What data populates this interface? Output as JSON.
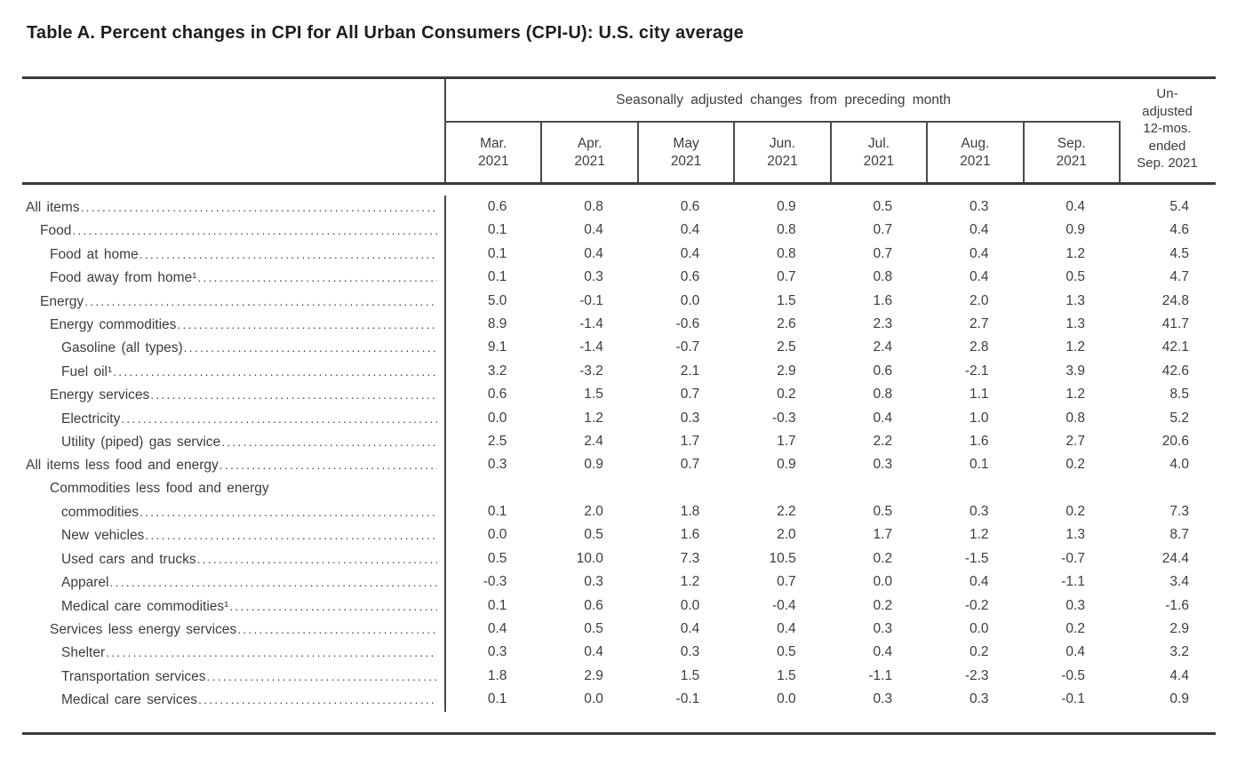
{
  "title": "Table A. Percent changes in CPI for All Urban Consumers (CPI-U): U.S. city average",
  "table": {
    "group_header": "Seasonally adjusted changes from preceding month",
    "month_columns": [
      {
        "line1": "Mar.",
        "line2": "2021"
      },
      {
        "line1": "Apr.",
        "line2": "2021"
      },
      {
        "line1": "May",
        "line2": "2021"
      },
      {
        "line1": "Jun.",
        "line2": "2021"
      },
      {
        "line1": "Jul.",
        "line2": "2021"
      },
      {
        "line1": "Aug.",
        "line2": "2021"
      },
      {
        "line1": "Sep.",
        "line2": "2021"
      }
    ],
    "unadjusted_header_lines": [
      "Un-",
      "adjusted",
      "12-mos.",
      "ended",
      "Sep. 2021"
    ],
    "rows": [
      {
        "label": "All items",
        "indent": 0,
        "values": [
          "0.6",
          "0.8",
          "0.6",
          "0.9",
          "0.5",
          "0.3",
          "0.4"
        ],
        "unadjusted_12mo": "5.4"
      },
      {
        "label": "Food",
        "indent": 1,
        "values": [
          "0.1",
          "0.4",
          "0.4",
          "0.8",
          "0.7",
          "0.4",
          "0.9"
        ],
        "unadjusted_12mo": "4.6"
      },
      {
        "label": "Food at home",
        "indent": 2,
        "values": [
          "0.1",
          "0.4",
          "0.4",
          "0.8",
          "0.7",
          "0.4",
          "1.2"
        ],
        "unadjusted_12mo": "4.5"
      },
      {
        "label": "Food away from home¹",
        "indent": 2,
        "values": [
          "0.1",
          "0.3",
          "0.6",
          "0.7",
          "0.8",
          "0.4",
          "0.5"
        ],
        "unadjusted_12mo": "4.7"
      },
      {
        "label": "Energy",
        "indent": 1,
        "values": [
          "5.0",
          "-0.1",
          "0.0",
          "1.5",
          "1.6",
          "2.0",
          "1.3"
        ],
        "unadjusted_12mo": "24.8"
      },
      {
        "label": "Energy commodities",
        "indent": 2,
        "values": [
          "8.9",
          "-1.4",
          "-0.6",
          "2.6",
          "2.3",
          "2.7",
          "1.3"
        ],
        "unadjusted_12mo": "41.7"
      },
      {
        "label": "Gasoline (all types)",
        "indent": 3,
        "values": [
          "9.1",
          "-1.4",
          "-0.7",
          "2.5",
          "2.4",
          "2.8",
          "1.2"
        ],
        "unadjusted_12mo": "42.1"
      },
      {
        "label": "Fuel oil¹",
        "indent": 3,
        "values": [
          "3.2",
          "-3.2",
          "2.1",
          "2.9",
          "0.6",
          "-2.1",
          "3.9"
        ],
        "unadjusted_12mo": "42.6"
      },
      {
        "label": "Energy services",
        "indent": 2,
        "values": [
          "0.6",
          "1.5",
          "0.7",
          "0.2",
          "0.8",
          "1.1",
          "1.2"
        ],
        "unadjusted_12mo": "8.5"
      },
      {
        "label": "Electricity",
        "indent": 3,
        "values": [
          "0.0",
          "1.2",
          "0.3",
          "-0.3",
          "0.4",
          "1.0",
          "0.8"
        ],
        "unadjusted_12mo": "5.2"
      },
      {
        "label": "Utility (piped) gas service",
        "indent": 3,
        "values": [
          "2.5",
          "2.4",
          "1.7",
          "1.7",
          "2.2",
          "1.6",
          "2.7"
        ],
        "unadjusted_12mo": "20.6"
      },
      {
        "label": "All items less food and energy",
        "indent": 0,
        "values": [
          "0.3",
          "0.9",
          "0.7",
          "0.9",
          "0.3",
          "0.1",
          "0.2"
        ],
        "unadjusted_12mo": "4.0"
      },
      {
        "label": "Commodities less food and energy",
        "indent": 2,
        "label_line2": "commodities",
        "indent_line2": 3,
        "values": [
          "0.1",
          "2.0",
          "1.8",
          "2.2",
          "0.5",
          "0.3",
          "0.2"
        ],
        "unadjusted_12mo": "7.3"
      },
      {
        "label": "New vehicles",
        "indent": 3,
        "values": [
          "0.0",
          "0.5",
          "1.6",
          "2.0",
          "1.7",
          "1.2",
          "1.3"
        ],
        "unadjusted_12mo": "8.7"
      },
      {
        "label": "Used cars and trucks",
        "indent": 3,
        "values": [
          "0.5",
          "10.0",
          "7.3",
          "10.5",
          "0.2",
          "-1.5",
          "-0.7"
        ],
        "unadjusted_12mo": "24.4"
      },
      {
        "label": "Apparel",
        "indent": 3,
        "values": [
          "-0.3",
          "0.3",
          "1.2",
          "0.7",
          "0.0",
          "0.4",
          "-1.1"
        ],
        "unadjusted_12mo": "3.4"
      },
      {
        "label": "Medical care commodities¹",
        "indent": 3,
        "values": [
          "0.1",
          "0.6",
          "0.0",
          "-0.4",
          "0.2",
          "-0.2",
          "0.3"
        ],
        "unadjusted_12mo": "-1.6"
      },
      {
        "label": "Services less energy services",
        "indent": 2,
        "values": [
          "0.4",
          "0.5",
          "0.4",
          "0.4",
          "0.3",
          "0.0",
          "0.2"
        ],
        "unadjusted_12mo": "2.9"
      },
      {
        "label": "Shelter",
        "indent": 3,
        "values": [
          "0.3",
          "0.4",
          "0.3",
          "0.5",
          "0.4",
          "0.2",
          "0.4"
        ],
        "unadjusted_12mo": "3.2"
      },
      {
        "label": "Transportation services",
        "indent": 3,
        "values": [
          "1.8",
          "2.9",
          "1.5",
          "1.5",
          "-1.1",
          "-2.3",
          "-0.5"
        ],
        "unadjusted_12mo": "4.4"
      },
      {
        "label": "Medical care services",
        "indent": 3,
        "values": [
          "0.1",
          "0.0",
          "-0.1",
          "0.0",
          "0.3",
          "0.3",
          "-0.1"
        ],
        "unadjusted_12mo": "0.9"
      }
    ]
  }
}
